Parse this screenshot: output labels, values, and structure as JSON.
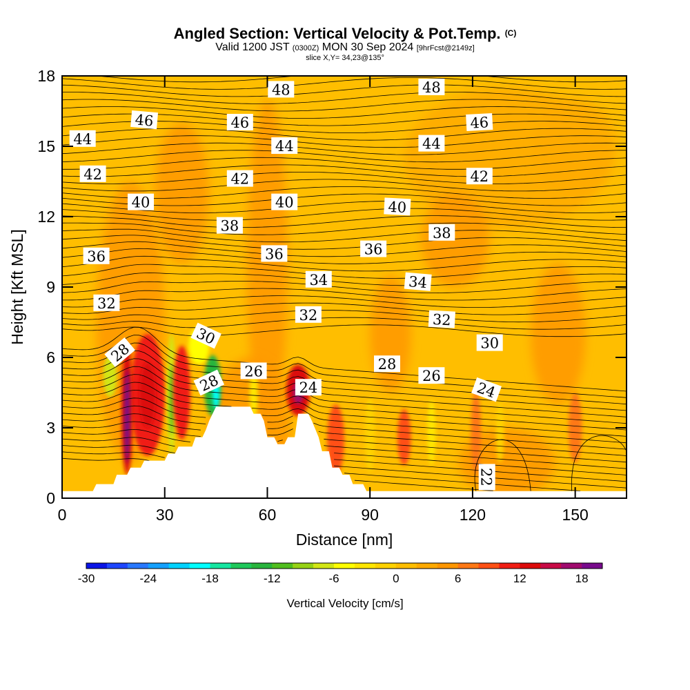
{
  "titles": {
    "main": "Angled Section: Vertical Velocity & Pot.Temp.",
    "copyright": "(C)",
    "valid_prefix": "Valid 1200 JST",
    "valid_z": "(0300Z)",
    "valid_date": "MON 30 Sep 2024",
    "valid_fcst": "[9hrFcst@2149z]",
    "slice": "slice X,Y= 34,23@135°"
  },
  "chart_data": {
    "type": "heatmap",
    "xlabel": "Distance [nm]",
    "ylabel": "Height [Kft MSL]",
    "xlim": [
      0,
      165
    ],
    "ylim": [
      0,
      18
    ],
    "x_ticks": [
      0,
      30,
      60,
      90,
      120,
      150
    ],
    "y_ticks": [
      0,
      3,
      6,
      9,
      12,
      15,
      18
    ],
    "colorbar": {
      "label": "Vertical Velocity [cm/s]",
      "min": -30,
      "max": 20,
      "step": 2,
      "tick_values": [
        -30,
        -24,
        -18,
        -12,
        -6,
        0,
        6,
        12,
        18
      ],
      "tick_labels": [
        "-30",
        "-24",
        "-18",
        "-12",
        "-6",
        "0",
        "6",
        "12",
        "18"
      ],
      "colors": [
        "#0a14e6",
        "#1e46ff",
        "#2878ff",
        "#14a0ff",
        "#00d2ff",
        "#00ffff",
        "#14e6a0",
        "#1ec85a",
        "#28b43c",
        "#50be1e",
        "#96d214",
        "#d2e614",
        "#ffff00",
        "#ffe600",
        "#ffd200",
        "#ffbe00",
        "#ffaa00",
        "#ff9600",
        "#ff7814",
        "#ff5014",
        "#f01e14",
        "#dc0a0a",
        "#c80a46",
        "#a00a6e",
        "#780a8c"
      ]
    },
    "contour_field": "potential temperature",
    "contour_levels": [
      22,
      24,
      26,
      28,
      30,
      32,
      34,
      36,
      38,
      40,
      42,
      44,
      46,
      48
    ],
    "contour_labels": [
      {
        "text": "48",
        "x": 64,
        "y": 17.4,
        "rot": 0
      },
      {
        "text": "48",
        "x": 108,
        "y": 17.5,
        "rot": 0
      },
      {
        "text": "46",
        "x": 24,
        "y": 16.1,
        "rot": 5
      },
      {
        "text": "46",
        "x": 52,
        "y": 16.0,
        "rot": 0
      },
      {
        "text": "46",
        "x": 122,
        "y": 16.0,
        "rot": -3
      },
      {
        "text": "44",
        "x": 6,
        "y": 15.3,
        "rot": 0
      },
      {
        "text": "44",
        "x": 65,
        "y": 15.0,
        "rot": 0
      },
      {
        "text": "44",
        "x": 108,
        "y": 15.1,
        "rot": 0
      },
      {
        "text": "42",
        "x": 9,
        "y": 13.8,
        "rot": 0
      },
      {
        "text": "42",
        "x": 52,
        "y": 13.6,
        "rot": 0
      },
      {
        "text": "42",
        "x": 122,
        "y": 13.7,
        "rot": 0
      },
      {
        "text": "40",
        "x": 23,
        "y": 12.6,
        "rot": 0
      },
      {
        "text": "40",
        "x": 65,
        "y": 12.6,
        "rot": 0
      },
      {
        "text": "40",
        "x": 98,
        "y": 12.4,
        "rot": 3
      },
      {
        "text": "38",
        "x": 49,
        "y": 11.6,
        "rot": 0
      },
      {
        "text": "38",
        "x": 111,
        "y": 11.3,
        "rot": 0
      },
      {
        "text": "36",
        "x": 10,
        "y": 10.3,
        "rot": 0
      },
      {
        "text": "36",
        "x": 62,
        "y": 10.4,
        "rot": 0
      },
      {
        "text": "36",
        "x": 91,
        "y": 10.6,
        "rot": 0
      },
      {
        "text": "34",
        "x": 75,
        "y": 9.3,
        "rot": 0
      },
      {
        "text": "34",
        "x": 104,
        "y": 9.2,
        "rot": 5
      },
      {
        "text": "32",
        "x": 13,
        "y": 8.3,
        "rot": 0
      },
      {
        "text": "32",
        "x": 72,
        "y": 7.8,
        "rot": 0
      },
      {
        "text": "32",
        "x": 111,
        "y": 7.6,
        "rot": 3
      },
      {
        "text": "30",
        "x": 42,
        "y": 6.9,
        "rot": 25
      },
      {
        "text": "30",
        "x": 125,
        "y": 6.6,
        "rot": 0
      },
      {
        "text": "28",
        "x": 17,
        "y": 6.2,
        "rot": -40
      },
      {
        "text": "28",
        "x": 43,
        "y": 4.9,
        "rot": -25
      },
      {
        "text": "28",
        "x": 95,
        "y": 5.7,
        "rot": 0
      },
      {
        "text": "26",
        "x": 56,
        "y": 5.4,
        "rot": 0
      },
      {
        "text": "26",
        "x": 108,
        "y": 5.2,
        "rot": 0
      },
      {
        "text": "24",
        "x": 72,
        "y": 4.7,
        "rot": 0
      },
      {
        "text": "24",
        "x": 124,
        "y": 4.6,
        "rot": 20
      },
      {
        "text": "22",
        "x": 124,
        "y": 0.9,
        "rot": 90
      }
    ],
    "terrain_nm_kft": [
      [
        0,
        0.3
      ],
      [
        9,
        0.3
      ],
      [
        10,
        0.6
      ],
      [
        15,
        0.6
      ],
      [
        16,
        1.0
      ],
      [
        19,
        1.0
      ],
      [
        20,
        1.3
      ],
      [
        23,
        1.3
      ],
      [
        24,
        1.6
      ],
      [
        30,
        1.6
      ],
      [
        31,
        1.9
      ],
      [
        33,
        1.9
      ],
      [
        34,
        2.2
      ],
      [
        38,
        2.2
      ],
      [
        39,
        2.6
      ],
      [
        41,
        2.6
      ],
      [
        42,
        2.9
      ],
      [
        43,
        3.3
      ],
      [
        44,
        3.6
      ],
      [
        45,
        3.9
      ],
      [
        55,
        3.9
      ],
      [
        56,
        3.6
      ],
      [
        58,
        3.6
      ],
      [
        59,
        3.3
      ],
      [
        60,
        2.6
      ],
      [
        62,
        2.6
      ],
      [
        63,
        2.3
      ],
      [
        65,
        2.3
      ],
      [
        66,
        2.6
      ],
      [
        68,
        2.6
      ],
      [
        69,
        3.6
      ],
      [
        72,
        3.6
      ],
      [
        73,
        3.3
      ],
      [
        75,
        2.6
      ],
      [
        76,
        2.0
      ],
      [
        78,
        2.0
      ],
      [
        79,
        1.3
      ],
      [
        81,
        1.3
      ],
      [
        82,
        1.0
      ],
      [
        84,
        1.0
      ],
      [
        85,
        0.6
      ],
      [
        88,
        0.6
      ],
      [
        89,
        0.3
      ],
      [
        165,
        0.3
      ]
    ]
  }
}
